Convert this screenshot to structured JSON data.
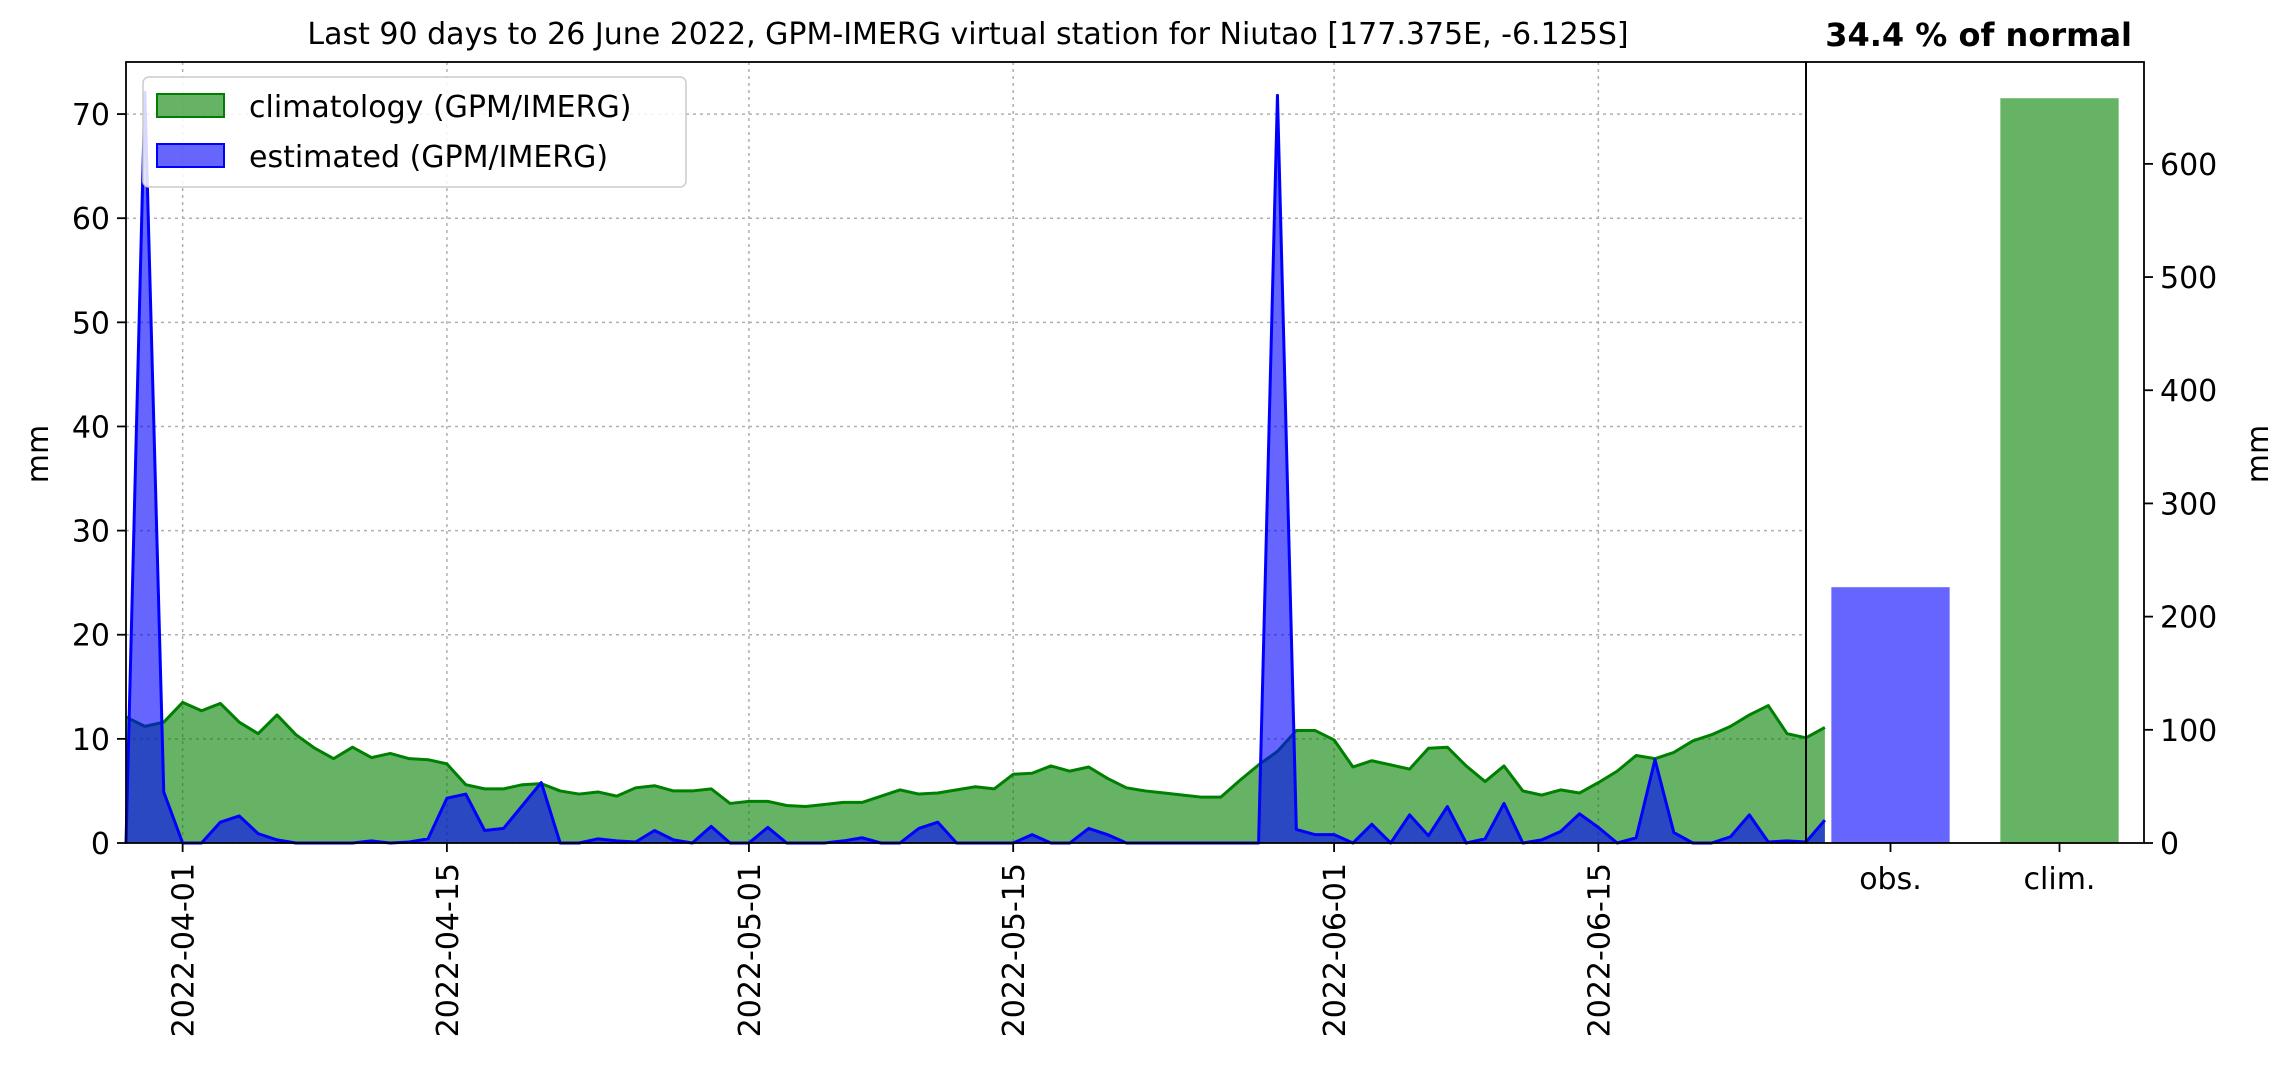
{
  "chart_data": [
    {
      "type": "area",
      "title": "Last 90 days to 26 June 2022, GPM-IMERG virtual station for Niutao [177.375E, -6.125S]",
      "ylabel": "mm",
      "xlabel": "",
      "x_start": "2022-03-29",
      "x_end": "2022-06-26",
      "ylim": [
        0,
        75
      ],
      "yticks": [
        0,
        10,
        20,
        30,
        40,
        50,
        60,
        70
      ],
      "xticks": [
        "2022-04-01",
        "2022-04-15",
        "2022-05-01",
        "2022-05-15",
        "2022-06-01",
        "2022-06-15"
      ],
      "grid": true,
      "legend_position": "top-left",
      "series": [
        {
          "name": "climatology (GPM/IMERG)",
          "color": "#008000",
          "values": [
            12.1,
            11.2,
            11.6,
            13.5,
            12.7,
            13.4,
            11.6,
            10.5,
            12.3,
            10.4,
            9.1,
            8.1,
            9.2,
            8.2,
            8.6,
            8.1,
            8.0,
            7.6,
            5.6,
            5.2,
            5.2,
            5.6,
            5.7,
            5.0,
            4.7,
            4.9,
            4.5,
            5.3,
            5.5,
            5.0,
            5.0,
            5.2,
            3.8,
            4.0,
            4.0,
            3.6,
            3.5,
            3.7,
            3.9,
            3.9,
            4.5,
            5.1,
            4.7,
            4.8,
            5.1,
            5.4,
            5.2,
            6.6,
            6.7,
            7.4,
            6.9,
            7.3,
            6.2,
            5.3,
            5.0,
            4.8,
            4.6,
            4.4,
            4.4,
            6.0,
            7.5,
            8.8,
            10.8,
            10.8,
            9.9,
            7.3,
            7.9,
            7.5,
            7.1,
            9.1,
            9.2,
            7.4,
            5.9,
            7.4,
            5.0,
            4.6,
            5.1,
            4.8,
            5.8,
            6.9,
            8.4,
            8.1,
            8.7,
            9.8,
            10.4,
            11.2,
            12.3,
            13.2,
            10.5,
            10.1,
            11.1
          ]
        },
        {
          "name": "estimated (GPM/IMERG)",
          "color": "#0000ff",
          "values": [
            0,
            72.1,
            4.9,
            0,
            0,
            2.0,
            2.6,
            0.9,
            0.3,
            0,
            0,
            0,
            0,
            0.2,
            0,
            0.1,
            0.4,
            4.3,
            4.7,
            1.2,
            1.4,
            3.6,
            5.8,
            0,
            0,
            0.4,
            0.2,
            0.1,
            1.2,
            0.3,
            0,
            1.6,
            0,
            0,
            1.5,
            0,
            0,
            0,
            0.2,
            0.5,
            0,
            0,
            1.4,
            2.0,
            0,
            0,
            0,
            0,
            0.8,
            0,
            0,
            1.4,
            0.8,
            0,
            0,
            0,
            0,
            0,
            0,
            0,
            0,
            71.8,
            1.3,
            0.8,
            0.8,
            0,
            1.8,
            0,
            2.7,
            0.7,
            3.5,
            0,
            0.4,
            3.8,
            0,
            0.3,
            1.1,
            2.8,
            1.5,
            0,
            0.5,
            8.0,
            1.0,
            0,
            0,
            0.6,
            2.7,
            0.1,
            0.2,
            0.1,
            2.2
          ]
        }
      ]
    },
    {
      "type": "bar",
      "title": "34.4 % of normal",
      "ylabel": "mm",
      "xlabel": "",
      "categories": [
        "obs.",
        "clim."
      ],
      "values": [
        226,
        658
      ],
      "colors": [
        "#0000ff",
        "#008000"
      ],
      "ylim": [
        0,
        690
      ],
      "yticks": [
        0,
        100,
        200,
        300,
        400,
        500,
        600
      ],
      "grid": false
    }
  ]
}
